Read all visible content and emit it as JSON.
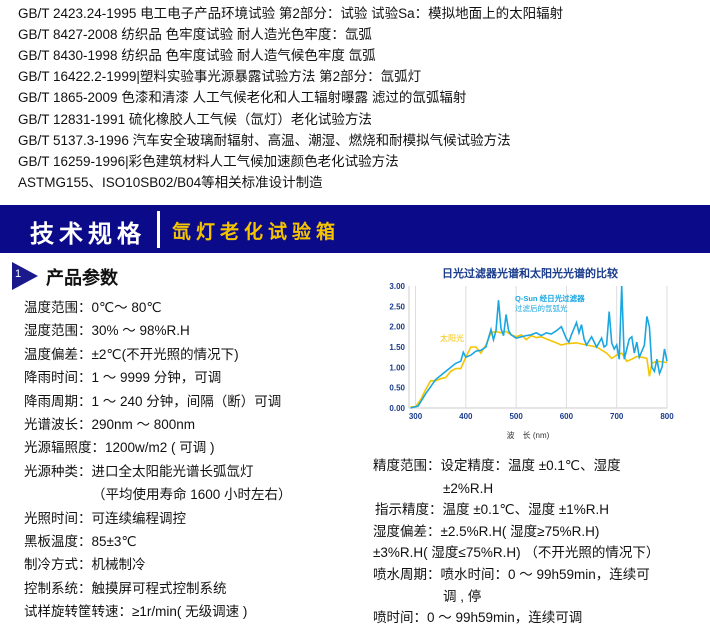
{
  "standards": [
    "GB/T 2423.24-1995 电工电子产品环境试验 第2部分：试验 试验Sa：模拟地面上的太阳辐射",
    "GB/T 8427-2008 纺织品 色牢度试验 耐人造光色牢度：氙弧",
    "GB/T 8430-1998 纺织品 色牢度试验 耐人造气候色牢度 氙弧",
    "GB/T 16422.2-1999|塑料实验事光源暴露试验方法 第2部分：氙弧灯",
    "GB/T 1865-2009 色漆和清漆 人工气候老化和人工辐射曝露 滤过的氙弧辐射",
    "GB/T 12831-1991 硫化橡胶人工气候（氙灯）老化试验方法",
    "GB/T 5137.3-1996 汽车安全玻璃耐辐射、高温、潮湿、燃烧和耐模拟气候试验方法",
    "GB/T 16259-1996|彩色建筑材料人工气候加速颜色老化试验方法",
    "ASTMG155、ISO10SB02/B04等相关标准设计制造"
  ],
  "banner": {
    "title": "技术规格",
    "subtitle": "氙灯老化试验箱",
    "bg_color": "#0b0b8a",
    "subtitle_color": "#f5c400"
  },
  "section": {
    "number": "1",
    "title": "产品参数"
  },
  "params_left": [
    "温度范围：0℃～ 80℃",
    "湿度范围：30% ～ 98%R.H",
    "温度偏差：±2℃(不开光照的情况下)",
    "降雨时间：1 ～ 9999 分钟，可调",
    "降雨周期：1 ～ 240 分钟，间隔（断）可调",
    "光谱波长：290nm ～ 800nm",
    "光源辐照度：1200w/m2 ( 可调 )",
    "光源种类：进口全太阳能光谱长弧氙灯",
    "（平均使用寿命 1600 小时左右）",
    "光照时间：可连续编程调控",
    "黑板温度：85±3℃",
    "制冷方式：机械制冷",
    "控制系统：触摸屏可程式控制系统",
    "试样旋转筐转速：≥1r/min( 无级调速 )"
  ],
  "params_right": [
    "精度范围：设定精度：温度 ±0.1℃、湿度",
    "±2%R.H",
    "指示精度：温度 ±0.1℃、湿度 ±1%R.H",
    "湿度偏差：±2.5%R.H( 湿度≥75%R.H)",
    "±3%R.H( 湿度≤75%R.H) （不开光照的情况下）",
    "喷水周期：喷水时间：0 ～ 99h59min，连续可",
    "调 , 停",
    "喷时间：0 ～ 99h59min，连续可调"
  ],
  "chart_data": {
    "type": "line",
    "title": "日光过滤器光谱和太阳光光谱的比较",
    "xlabel": "波　长 (nm)",
    "ylabel": "",
    "xlim": [
      287,
      800
    ],
    "ylim": [
      0,
      3
    ],
    "xticks": [
      "300",
      "400",
      "500",
      "600",
      "700",
      "800"
    ],
    "yticks": [
      "0.00",
      "0.50",
      "1.00",
      "1.50",
      "2.00",
      "2.50",
      "3.00"
    ],
    "grid": "vertical",
    "series": [
      {
        "name": "太阳光",
        "color": "#f5c400",
        "x": [
          290,
          300,
          310,
          320,
          330,
          340,
          350,
          360,
          370,
          380,
          390,
          400,
          410,
          420,
          430,
          440,
          450,
          460,
          470,
          480,
          490,
          500,
          510,
          520,
          530,
          540,
          550,
          560,
          570,
          580,
          590,
          600,
          620,
          640,
          660,
          680,
          690,
          700,
          710,
          720,
          730,
          740,
          750,
          760,
          765,
          770,
          780,
          800
        ],
        "y": [
          0.03,
          0.03,
          0.2,
          0.45,
          0.67,
          0.67,
          0.72,
          0.75,
          0.9,
          0.97,
          0.97,
          1.25,
          1.5,
          1.5,
          1.35,
          1.55,
          1.85,
          1.88,
          1.85,
          1.88,
          1.8,
          1.75,
          1.8,
          1.68,
          1.78,
          1.73,
          1.75,
          1.7,
          1.65,
          1.6,
          1.55,
          1.58,
          1.6,
          1.55,
          1.5,
          1.35,
          1.22,
          1.3,
          1.35,
          1.15,
          1.2,
          1.27,
          1.25,
          1.22,
          0.78,
          1.1,
          1.15,
          1.12
        ]
      },
      {
        "name": "Q-Sun 经日光过滤器 过滤后的氙弧光",
        "color": "#1aa7e0",
        "x": [
          290,
          305,
          320,
          340,
          360,
          380,
          390,
          395,
          400,
          410,
          420,
          430,
          440,
          450,
          455,
          460,
          465,
          470,
          475,
          480,
          485,
          490,
          500,
          510,
          520,
          530,
          540,
          550,
          560,
          570,
          580,
          590,
          600,
          605,
          610,
          620,
          625,
          630,
          635,
          640,
          650,
          660,
          670,
          675,
          680,
          685,
          690,
          695,
          700,
          705,
          710,
          715,
          720,
          725,
          730,
          735,
          740,
          745,
          750,
          755,
          760,
          765,
          770,
          775,
          780,
          785,
          790,
          795,
          800
        ],
        "y": [
          0,
          0.05,
          0.35,
          0.7,
          0.9,
          1.1,
          1.15,
          1.37,
          1.25,
          1.3,
          1.4,
          1.42,
          1.5,
          1.93,
          1.68,
          1.9,
          2.65,
          1.95,
          1.78,
          2.3,
          1.9,
          1.8,
          1.72,
          1.75,
          1.78,
          1.8,
          1.85,
          1.78,
          1.85,
          1.82,
          1.9,
          2.0,
          1.7,
          1.62,
          1.8,
          2.1,
          1.85,
          2.05,
          1.7,
          1.55,
          1.75,
          1.5,
          1.72,
          1.5,
          1.55,
          2.37,
          1.6,
          1.45,
          1.55,
          1.2,
          3.0,
          1.2,
          1.45,
          1.7,
          1.75,
          1.35,
          1.62,
          1.25,
          1.4,
          1.55,
          2.25,
          2.0,
          1.0,
          0.9,
          1.2,
          0.85,
          1.0,
          1.45,
          1.15
        ]
      }
    ],
    "annotations": {
      "qsun_line1": "Q-Sun 经日光过滤器",
      "qsun_line2": "过滤后的氙弧光",
      "sun": "太阳光"
    }
  }
}
